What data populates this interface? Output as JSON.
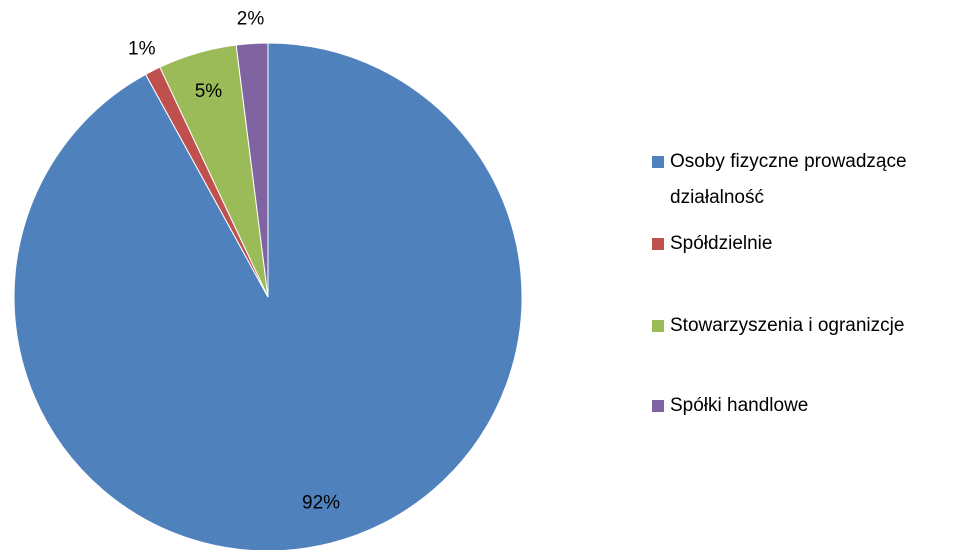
{
  "chart_data": {
    "type": "pie",
    "categories": [
      "Osoby fizyczne prowadzące działalność",
      "Spółdzielnie",
      "Stowarzyszenia i ogranizcje",
      "Spółki handlowe"
    ],
    "values": [
      92,
      1,
      5,
      2
    ],
    "value_labels": [
      "92%",
      "1%",
      "5%",
      "2%"
    ],
    "colors": [
      "#4f81bd",
      "#c0504d",
      "#9bbb59",
      "#8064a2"
    ],
    "legend": "right"
  }
}
